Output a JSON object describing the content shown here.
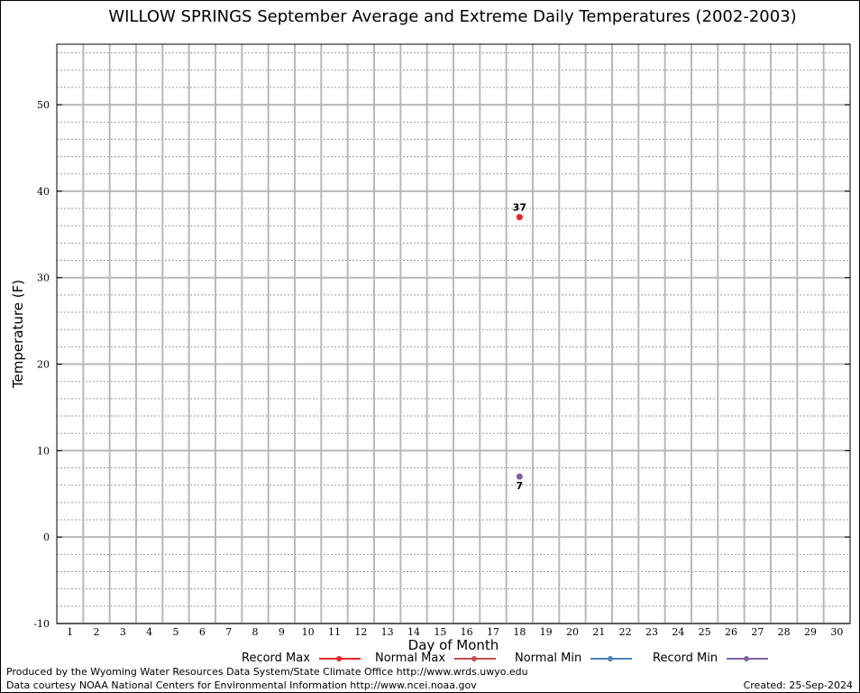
{
  "chart_data": {
    "type": "scatter",
    "title": "WILLOW SPRINGS September Average and Extreme Daily Temperatures (2002-2003)",
    "xlabel": "Day of Month",
    "ylabel": "Temperature (F)",
    "xlim": [
      0.5,
      30.5
    ],
    "ylim": [
      -10,
      57
    ],
    "x_ticks": [
      1,
      2,
      3,
      4,
      5,
      6,
      7,
      8,
      9,
      10,
      11,
      12,
      13,
      14,
      15,
      16,
      17,
      18,
      19,
      20,
      21,
      22,
      23,
      24,
      25,
      26,
      27,
      28,
      29,
      30
    ],
    "y_ticks": [
      -10,
      0,
      10,
      20,
      30,
      40,
      50
    ],
    "grid": true,
    "series": [
      {
        "name": "Record Max",
        "color": "#e8262a",
        "points": [
          [
            18,
            37
          ]
        ]
      },
      {
        "name": "Normal Max",
        "color": "#c0504d",
        "points": []
      },
      {
        "name": "Normal Min",
        "color": "#4f81bd",
        "points": []
      },
      {
        "name": "Record Min",
        "color": "#8064a2",
        "points": [
          [
            18,
            7
          ]
        ]
      }
    ],
    "annotations": [
      {
        "x": 18,
        "y": 37,
        "text": "37",
        "position": "above"
      },
      {
        "x": 18,
        "y": 7,
        "text": "7",
        "position": "below"
      }
    ],
    "legend_position": "bottom"
  },
  "footer": {
    "produced_by": "Produced by the Wyoming Water Resources Data System/State Climate Office http://www.wrds.uwyo.edu",
    "data_courtesy": "Data courtesy NOAA National Centers for Environmental Information http://www.ncei.noaa.gov",
    "created": "Created:  25-Sep-2024"
  }
}
